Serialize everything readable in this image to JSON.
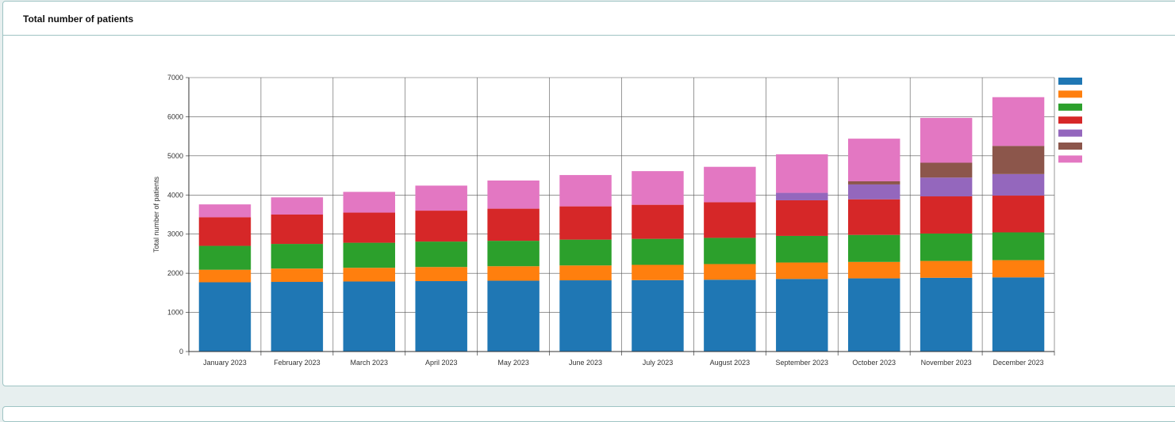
{
  "panel": {
    "title": "Total number of patients"
  },
  "chart_data": {
    "type": "bar",
    "stacked": true,
    "title": "",
    "xlabel": "",
    "ylabel": "Total number of patients",
    "ylim": [
      0,
      7000
    ],
    "yticks": [
      0,
      1000,
      2000,
      3000,
      4000,
      5000,
      6000,
      7000
    ],
    "grid": true,
    "legend_position": "right",
    "categories": [
      "January 2023",
      "February 2023",
      "March 2023",
      "April 2023",
      "May 2023",
      "June 2023",
      "July 2023",
      "August 2023",
      "September 2023",
      "October 2023",
      "November 2023",
      "December 2023"
    ],
    "series": [
      {
        "color": "#1f77b4",
        "values": [
          1770,
          1780,
          1790,
          1800,
          1810,
          1820,
          1825,
          1835,
          1855,
          1870,
          1885,
          1895
        ]
      },
      {
        "color": "#ff7f0e",
        "values": [
          320,
          340,
          350,
          360,
          370,
          380,
          390,
          400,
          420,
          420,
          430,
          440
        ]
      },
      {
        "color": "#2ca02c",
        "values": [
          610,
          630,
          640,
          650,
          650,
          660,
          665,
          670,
          680,
          690,
          700,
          710
        ]
      },
      {
        "color": "#d62728",
        "values": [
          730,
          750,
          770,
          790,
          820,
          850,
          870,
          910,
          910,
          910,
          950,
          940
        ]
      },
      {
        "color": "#9467bd",
        "values": [
          0,
          0,
          0,
          0,
          0,
          0,
          0,
          0,
          190,
          380,
          480,
          550
        ]
      },
      {
        "color": "#8c564b",
        "values": [
          0,
          0,
          0,
          0,
          0,
          0,
          0,
          0,
          0,
          80,
          380,
          720
        ]
      },
      {
        "color": "#e377c2",
        "values": [
          330,
          440,
          530,
          640,
          720,
          800,
          860,
          905,
          985,
          1090,
          1145,
          1245
        ]
      }
    ]
  }
}
